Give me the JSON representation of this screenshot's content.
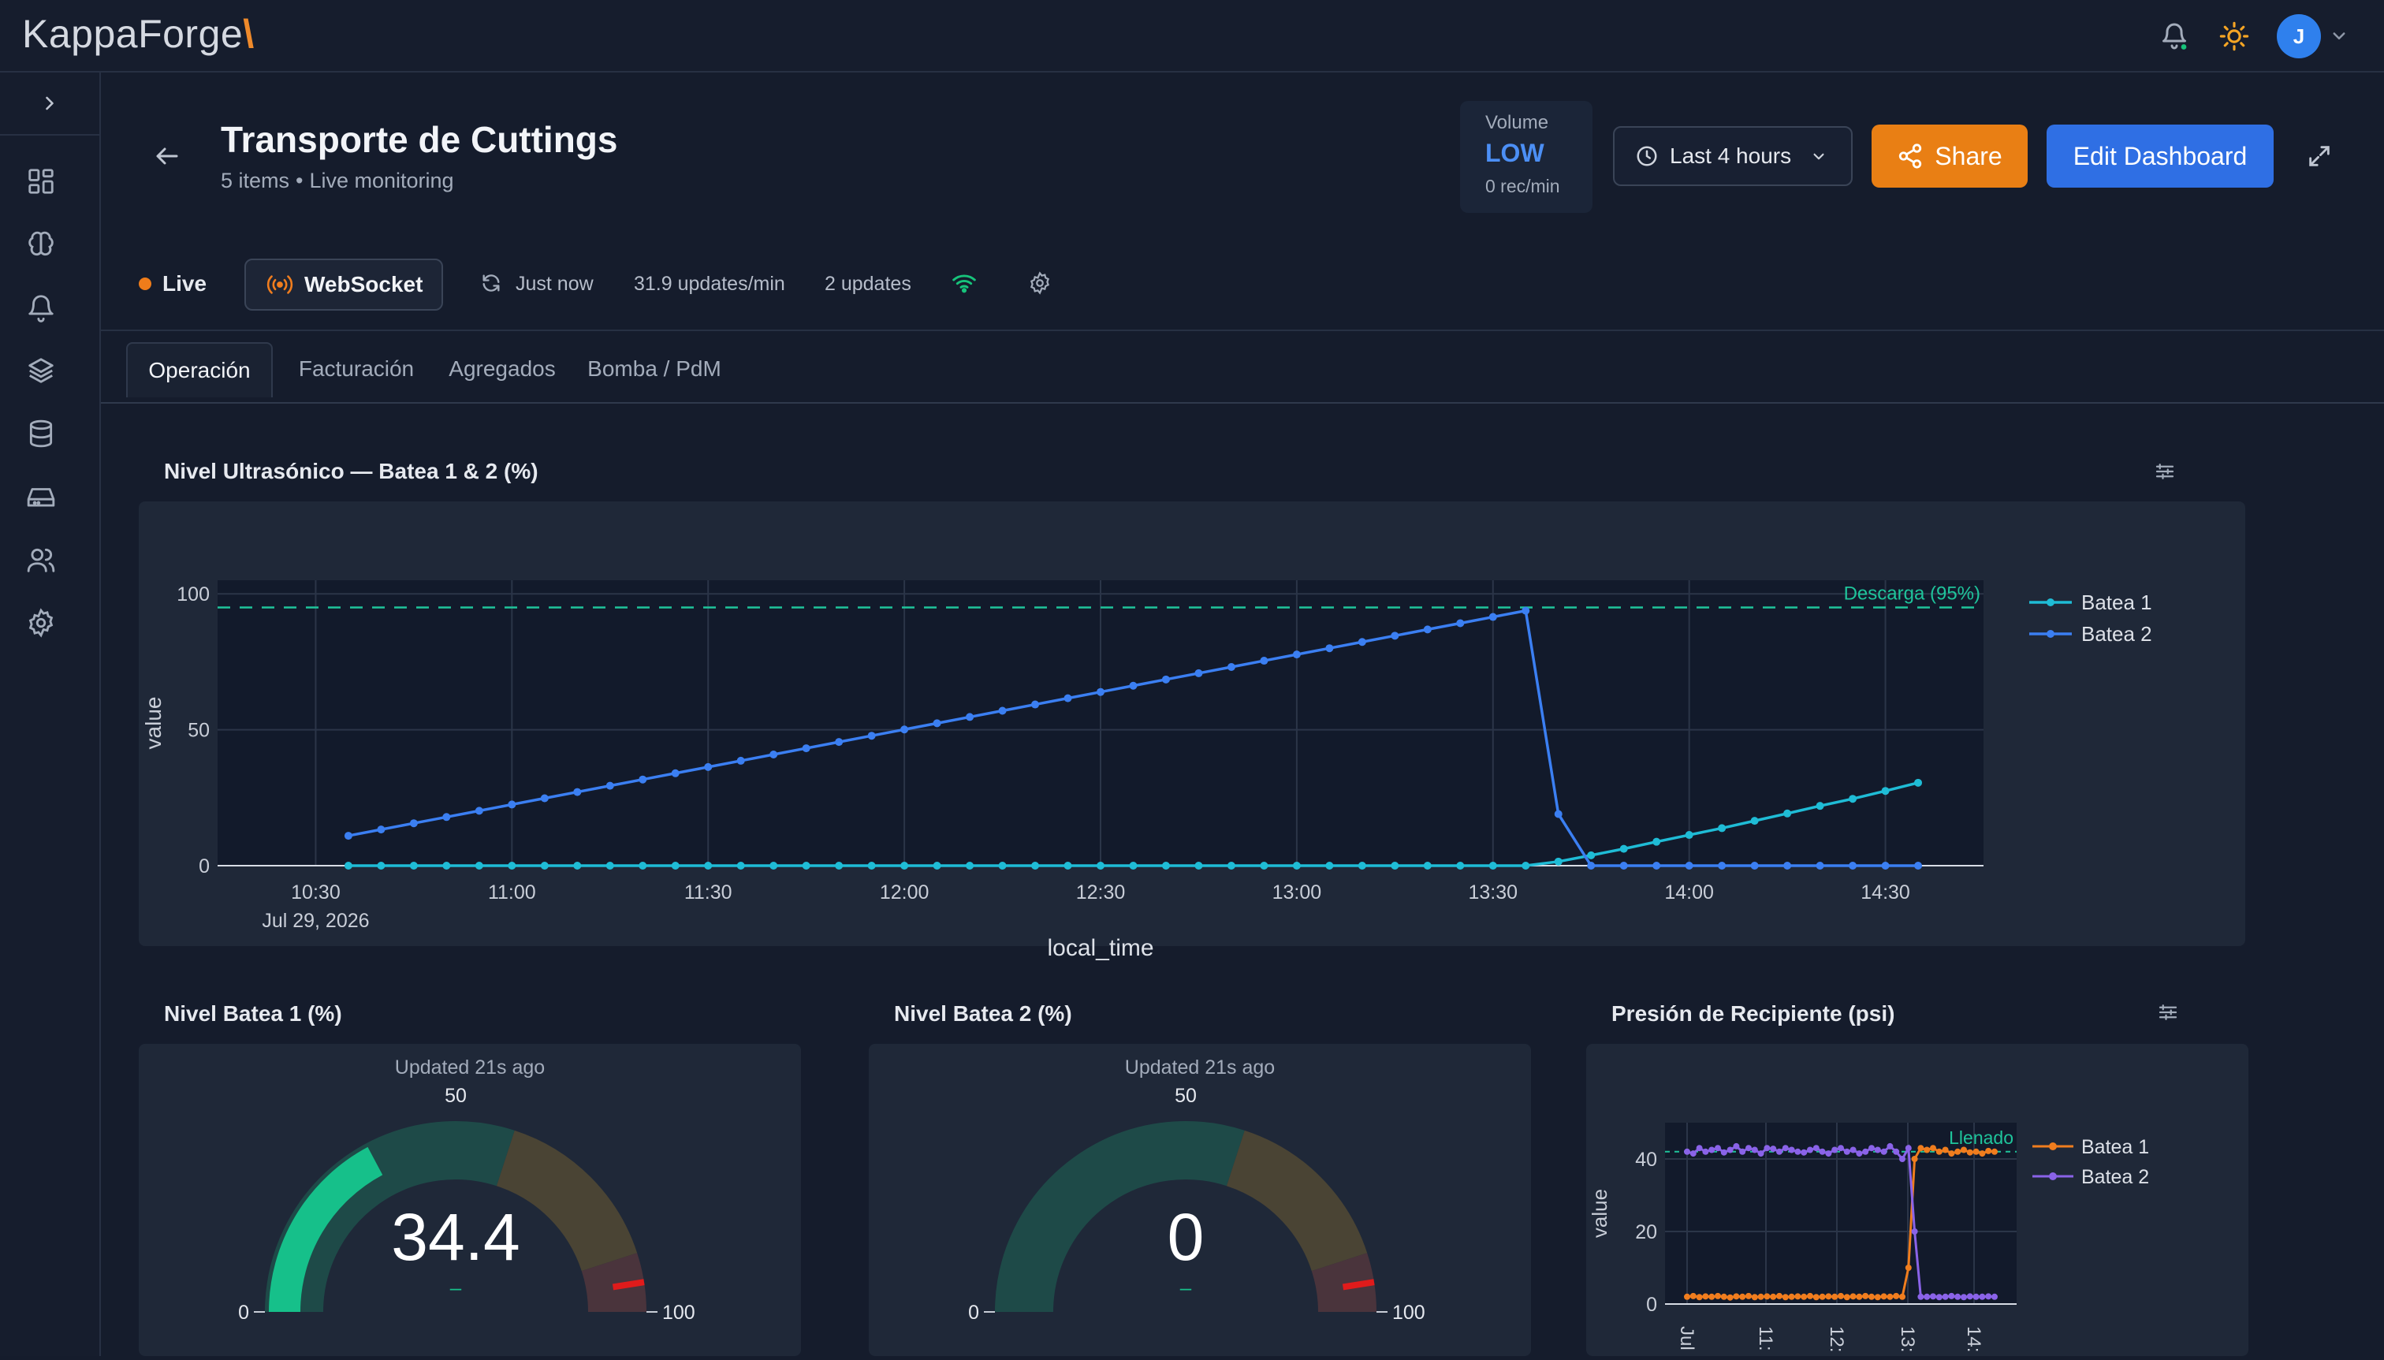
{
  "app": {
    "logo_text": "KappaForge",
    "logo_mark": "\\"
  },
  "user": {
    "initial": "J"
  },
  "header": {
    "title": "Transporte de Cuttings",
    "items": "5 items",
    "separator": "•",
    "mode": "Live monitoring"
  },
  "volume": {
    "label": "Volume",
    "level": "LOW",
    "rate": "0 rec/min"
  },
  "toolbar": {
    "time_range": "Last 4 hours",
    "share": "Share",
    "edit": "Edit Dashboard"
  },
  "status": {
    "live": "Live",
    "transport": "WebSocket",
    "refreshed": "Just now",
    "rate": "31.9 updates/min",
    "count": "2 updates"
  },
  "tabs": [
    {
      "label": "Operación",
      "active": true
    },
    {
      "label": "Facturación",
      "active": false
    },
    {
      "label": "Agregados",
      "active": false
    },
    {
      "label": "Bomba / PdM",
      "active": false
    }
  ],
  "colors": {
    "batea1": "#1fbcd6",
    "batea2": "#3b7ff2",
    "threshold": "#1fc49b",
    "orange": "#f07d1e",
    "purple": "#8a63e8",
    "gauge_fill": "#16c08a"
  },
  "panels": {
    "level_chart": {
      "title": "Nivel Ultrasónico — Batea 1 & 2 (%)",
      "chart_data": {
        "type": "line",
        "ylabel": "value",
        "xlabel": "local_time",
        "x_ticks": [
          "10:30",
          "11:00",
          "11:30",
          "12:00",
          "12:30",
          "13:00",
          "13:30",
          "14:00",
          "14:30"
        ],
        "x_tick_date": "Jul 29, 2026",
        "y_ticks": [
          0,
          50,
          100
        ],
        "ylim": [
          0,
          105
        ],
        "threshold": {
          "label": "Descarga (95%)",
          "value": 95
        },
        "legend_position": "right",
        "series": [
          {
            "name": "Batea 1",
            "x_minutes": [
              635,
              640,
              645,
              650,
              655,
              660,
              665,
              670,
              675,
              680,
              685,
              690,
              695,
              700,
              705,
              710,
              715,
              720,
              725,
              730,
              735,
              740,
              745,
              750,
              755,
              760,
              765,
              770,
              775,
              780,
              785,
              790,
              795,
              800,
              805,
              810,
              815,
              820,
              825,
              830,
              835,
              840,
              845,
              850,
              855,
              860,
              865,
              870,
              875
            ],
            "values": [
              0,
              0,
              0,
              0,
              0,
              0,
              0,
              0,
              0,
              0,
              0,
              0,
              0,
              0,
              0,
              0,
              0,
              0,
              0,
              0,
              0,
              0,
              0,
              0,
              0,
              0,
              0,
              0,
              0,
              0,
              0,
              0,
              0,
              0,
              0,
              0,
              0,
              1.5,
              3.8,
              6.2,
              8.8,
              11.3,
              13.8,
              16.5,
              19.2,
              22,
              24.6,
              27.5,
              30.5
            ]
          },
          {
            "name": "Batea 2",
            "x_minutes": [
              635,
              640,
              645,
              650,
              655,
              660,
              665,
              670,
              675,
              680,
              685,
              690,
              695,
              700,
              705,
              710,
              715,
              720,
              725,
              730,
              735,
              740,
              745,
              750,
              755,
              760,
              765,
              770,
              775,
              780,
              785,
              790,
              795,
              800,
              805,
              810,
              815,
              820,
              825,
              830,
              835,
              840,
              845,
              850,
              855,
              860,
              865,
              870,
              875
            ],
            "values": [
              11,
              13.3,
              15.6,
              17.9,
              20.2,
              22.5,
              24.8,
              27.1,
              29.4,
              31.7,
              34,
              36.3,
              38.6,
              40.9,
              43.2,
              45.5,
              47.8,
              50.1,
              52.4,
              54.7,
              57,
              59.3,
              61.6,
              63.9,
              66.2,
              68.5,
              70.8,
              73.1,
              75.4,
              77.7,
              80,
              82.3,
              84.6,
              86.9,
              89.2,
              91.5,
              93.8,
              19,
              0,
              0,
              0,
              0,
              0,
              0,
              0,
              0,
              0,
              0,
              0
            ]
          }
        ]
      }
    },
    "gauge1": {
      "title": "Nivel Batea 1 (%)",
      "updated": "Updated 21s ago",
      "chart_data": {
        "type": "gauge",
        "value": 34.4,
        "value_label": "34.4",
        "min": 0,
        "max": 100,
        "ticks": [
          "0",
          "50",
          "100"
        ],
        "delta": "–",
        "threshold": 95
      }
    },
    "gauge2": {
      "title": "Nivel Batea 2 (%)",
      "updated": "Updated 21s ago",
      "chart_data": {
        "type": "gauge",
        "value": 0,
        "value_label": "0",
        "min": 0,
        "max": 100,
        "ticks": [
          "0",
          "50",
          "100"
        ],
        "delta": "–",
        "threshold": 95
      }
    },
    "pressure_chart": {
      "title": "Presión de Recipiente (psi)",
      "chart_data": {
        "type": "line",
        "ylabel": "value",
        "x_ticks": [
          "Jul",
          "11:",
          "12:",
          "13:",
          "14:"
        ],
        "y_ticks": [
          0,
          20,
          40
        ],
        "ylim": [
          0,
          50
        ],
        "threshold": {
          "label": "Llenado",
          "value": 42
        },
        "legend_position": "right",
        "series": [
          {
            "name": "Batea 1",
            "values": [
              2,
              2.2,
              1.9,
              2.1,
              2,
              2.2,
              2,
              1.8,
              2.1,
              2,
              2.2,
              1.9,
              2,
              2.1,
              2,
              2.2,
              1.9,
              2,
              2.1,
              2,
              2.2,
              1.9,
              2,
              2.1,
              2,
              2.2,
              1.9,
              2.1,
              2,
              2.2,
              2,
              1.9,
              2.1,
              2,
              2.2,
              2,
              10,
              40,
              43,
              42.5,
              43,
              42,
              42.5,
              41.5,
              42,
              42.5,
              41.8,
              42,
              41.5,
              42.2,
              42
            ]
          },
          {
            "name": "Batea 2",
            "values": [
              42,
              41.5,
              43,
              42,
              42.5,
              43,
              41.8,
              42.5,
              43.5,
              42,
              43,
              42.5,
              41.5,
              43,
              42.8,
              42,
              43,
              42.5,
              42,
              41.8,
              42.5,
              43,
              42,
              41.5,
              42.5,
              43,
              42,
              42.5,
              41.5,
              42,
              43,
              42.5,
              42,
              43.5,
              42,
              40,
              43,
              20,
              2,
              2,
              2.1,
              1.9,
              2,
              2.2,
              2,
              1.9,
              2.1,
              2,
              2,
              2.1,
              2
            ]
          }
        ]
      }
    }
  }
}
